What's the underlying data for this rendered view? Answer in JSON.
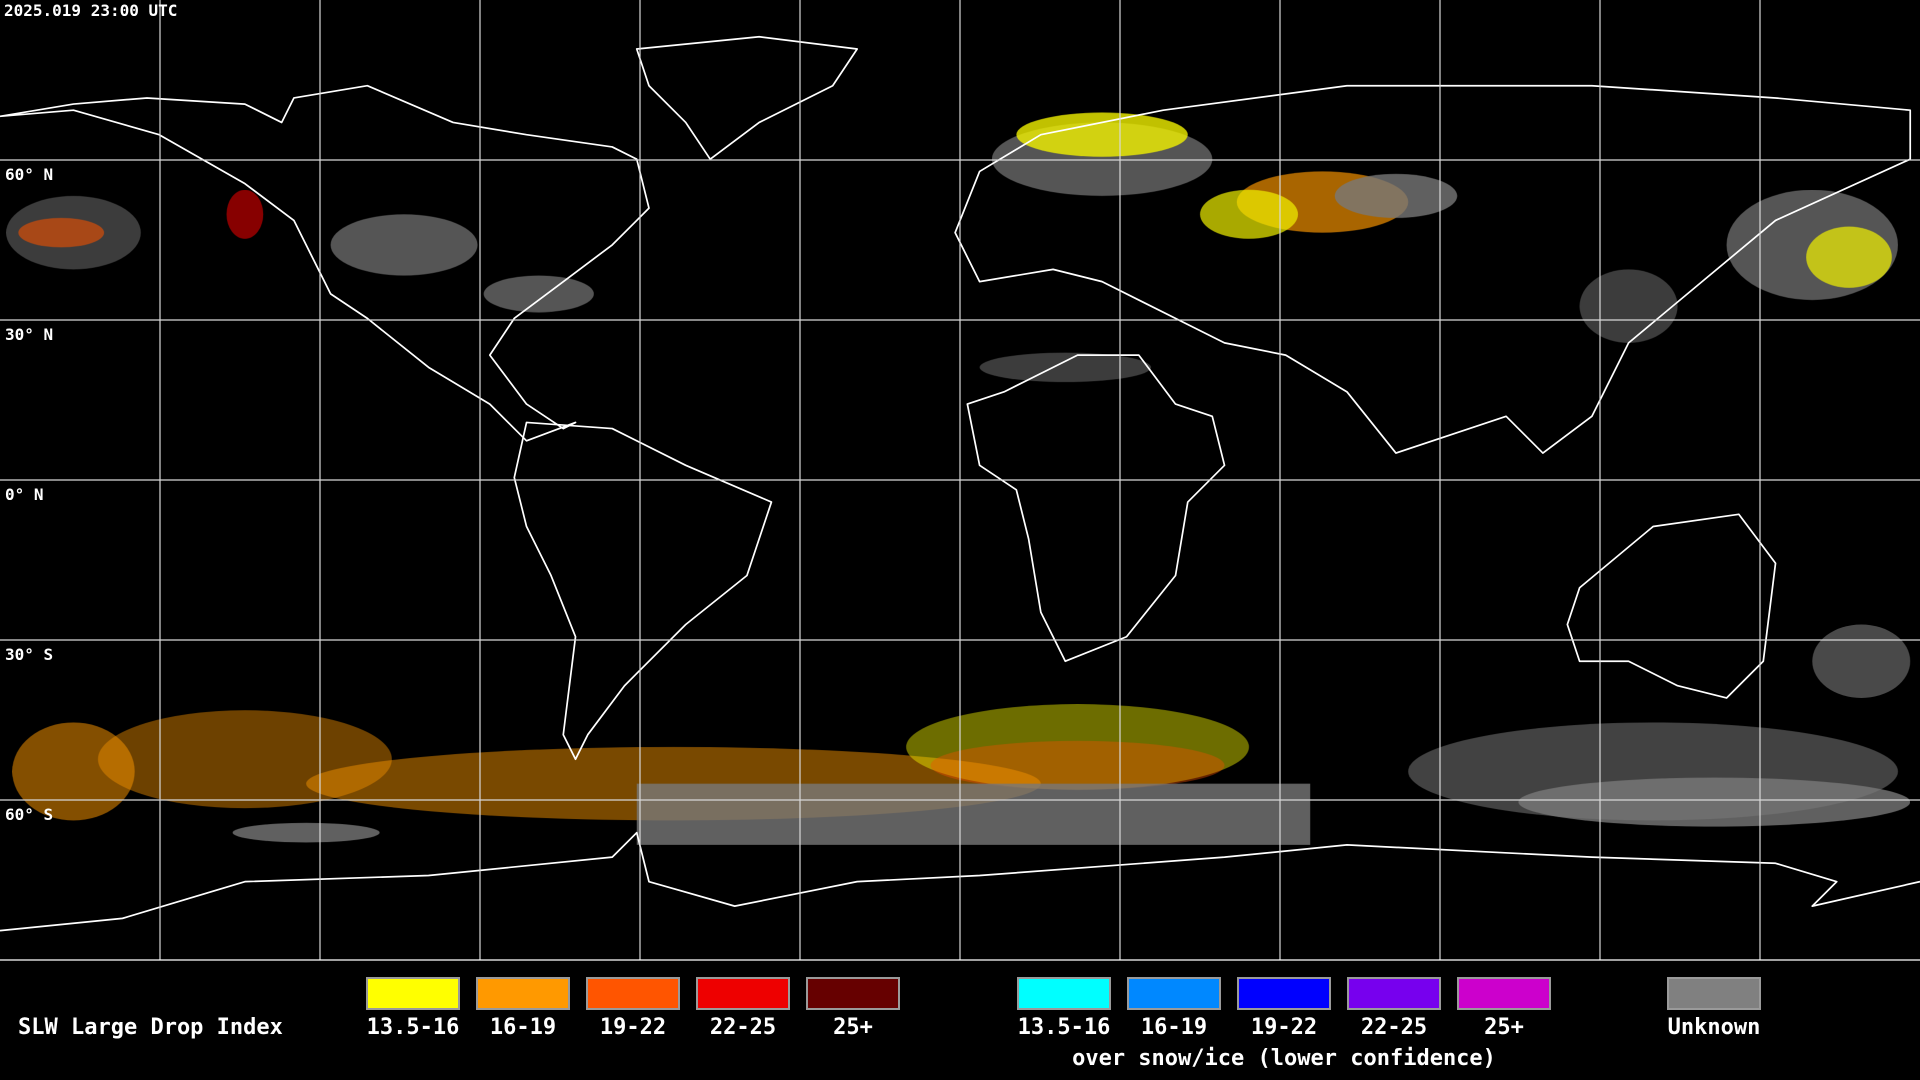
{
  "timestamp": "2025.019 23:00 UTC",
  "latitude_labels": [
    "60° N",
    "30° N",
    "0° N",
    "30° S",
    "60° S"
  ],
  "legend": {
    "title": "SLW Large Drop Index",
    "groups": [
      {
        "items": [
          {
            "label": "13.5-16",
            "color": "#ffff00"
          },
          {
            "label": "16-19",
            "color": "#ff9900"
          },
          {
            "label": "19-22",
            "color": "#ff5500"
          },
          {
            "label": "22-25",
            "color": "#ee0000"
          },
          {
            "label": "25+",
            "color": "#660000"
          }
        ]
      },
      {
        "items": [
          {
            "label": "13.5-16",
            "color": "#00ffff"
          },
          {
            "label": "16-19",
            "color": "#0088ff"
          },
          {
            "label": "19-22",
            "color": "#0000ff"
          },
          {
            "label": "22-25",
            "color": "#7700ee"
          },
          {
            "label": "25+",
            "color": "#cc00cc"
          }
        ],
        "caption": "over snow/ice (lower confidence)"
      }
    ],
    "unknown": {
      "label": "Unknown",
      "color": "#808080"
    }
  }
}
